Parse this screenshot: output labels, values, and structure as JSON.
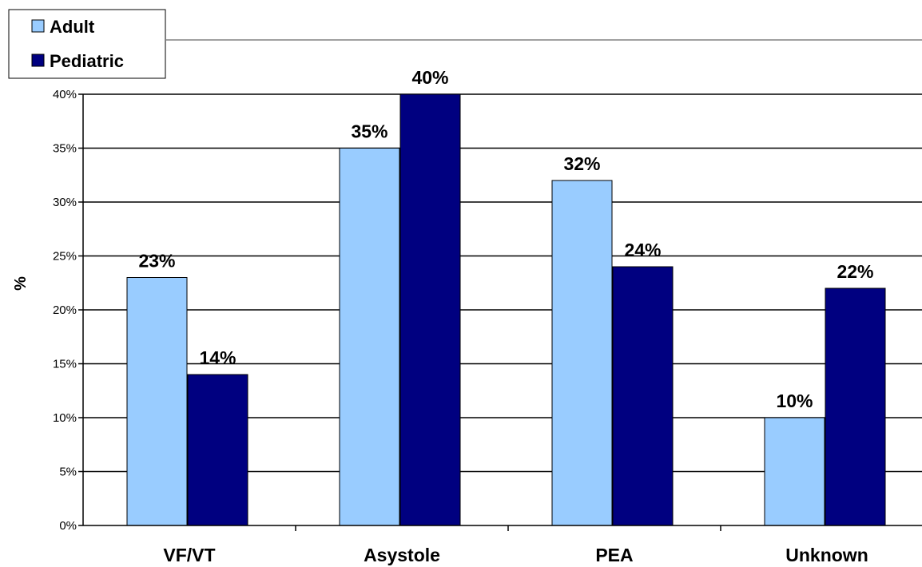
{
  "chart_data": {
    "type": "bar",
    "categories": [
      "VF/VT",
      "Asystole",
      "PEA",
      "Unknown"
    ],
    "series": [
      {
        "name": "Adult",
        "values": [
          23,
          35,
          32,
          10
        ],
        "color": "#99ccff",
        "labels": [
          "23%",
          "35%",
          "32%",
          "10%"
        ]
      },
      {
        "name": "Pediatric",
        "values": [
          14,
          40,
          24,
          22
        ],
        "color": "#000080",
        "labels": [
          "14%",
          "40%",
          "24%",
          "22%"
        ]
      }
    ],
    "title": "",
    "xlabel": "",
    "ylabel": "%",
    "ylim": [
      0,
      40
    ],
    "yticks": [
      0,
      5,
      10,
      15,
      20,
      25,
      30,
      35,
      40
    ],
    "ytick_labels": [
      "0%",
      "5%",
      "10%",
      "15%",
      "20%",
      "25%",
      "30%",
      "35%",
      "40%"
    ],
    "grid": true,
    "legend_position": "top-left"
  }
}
